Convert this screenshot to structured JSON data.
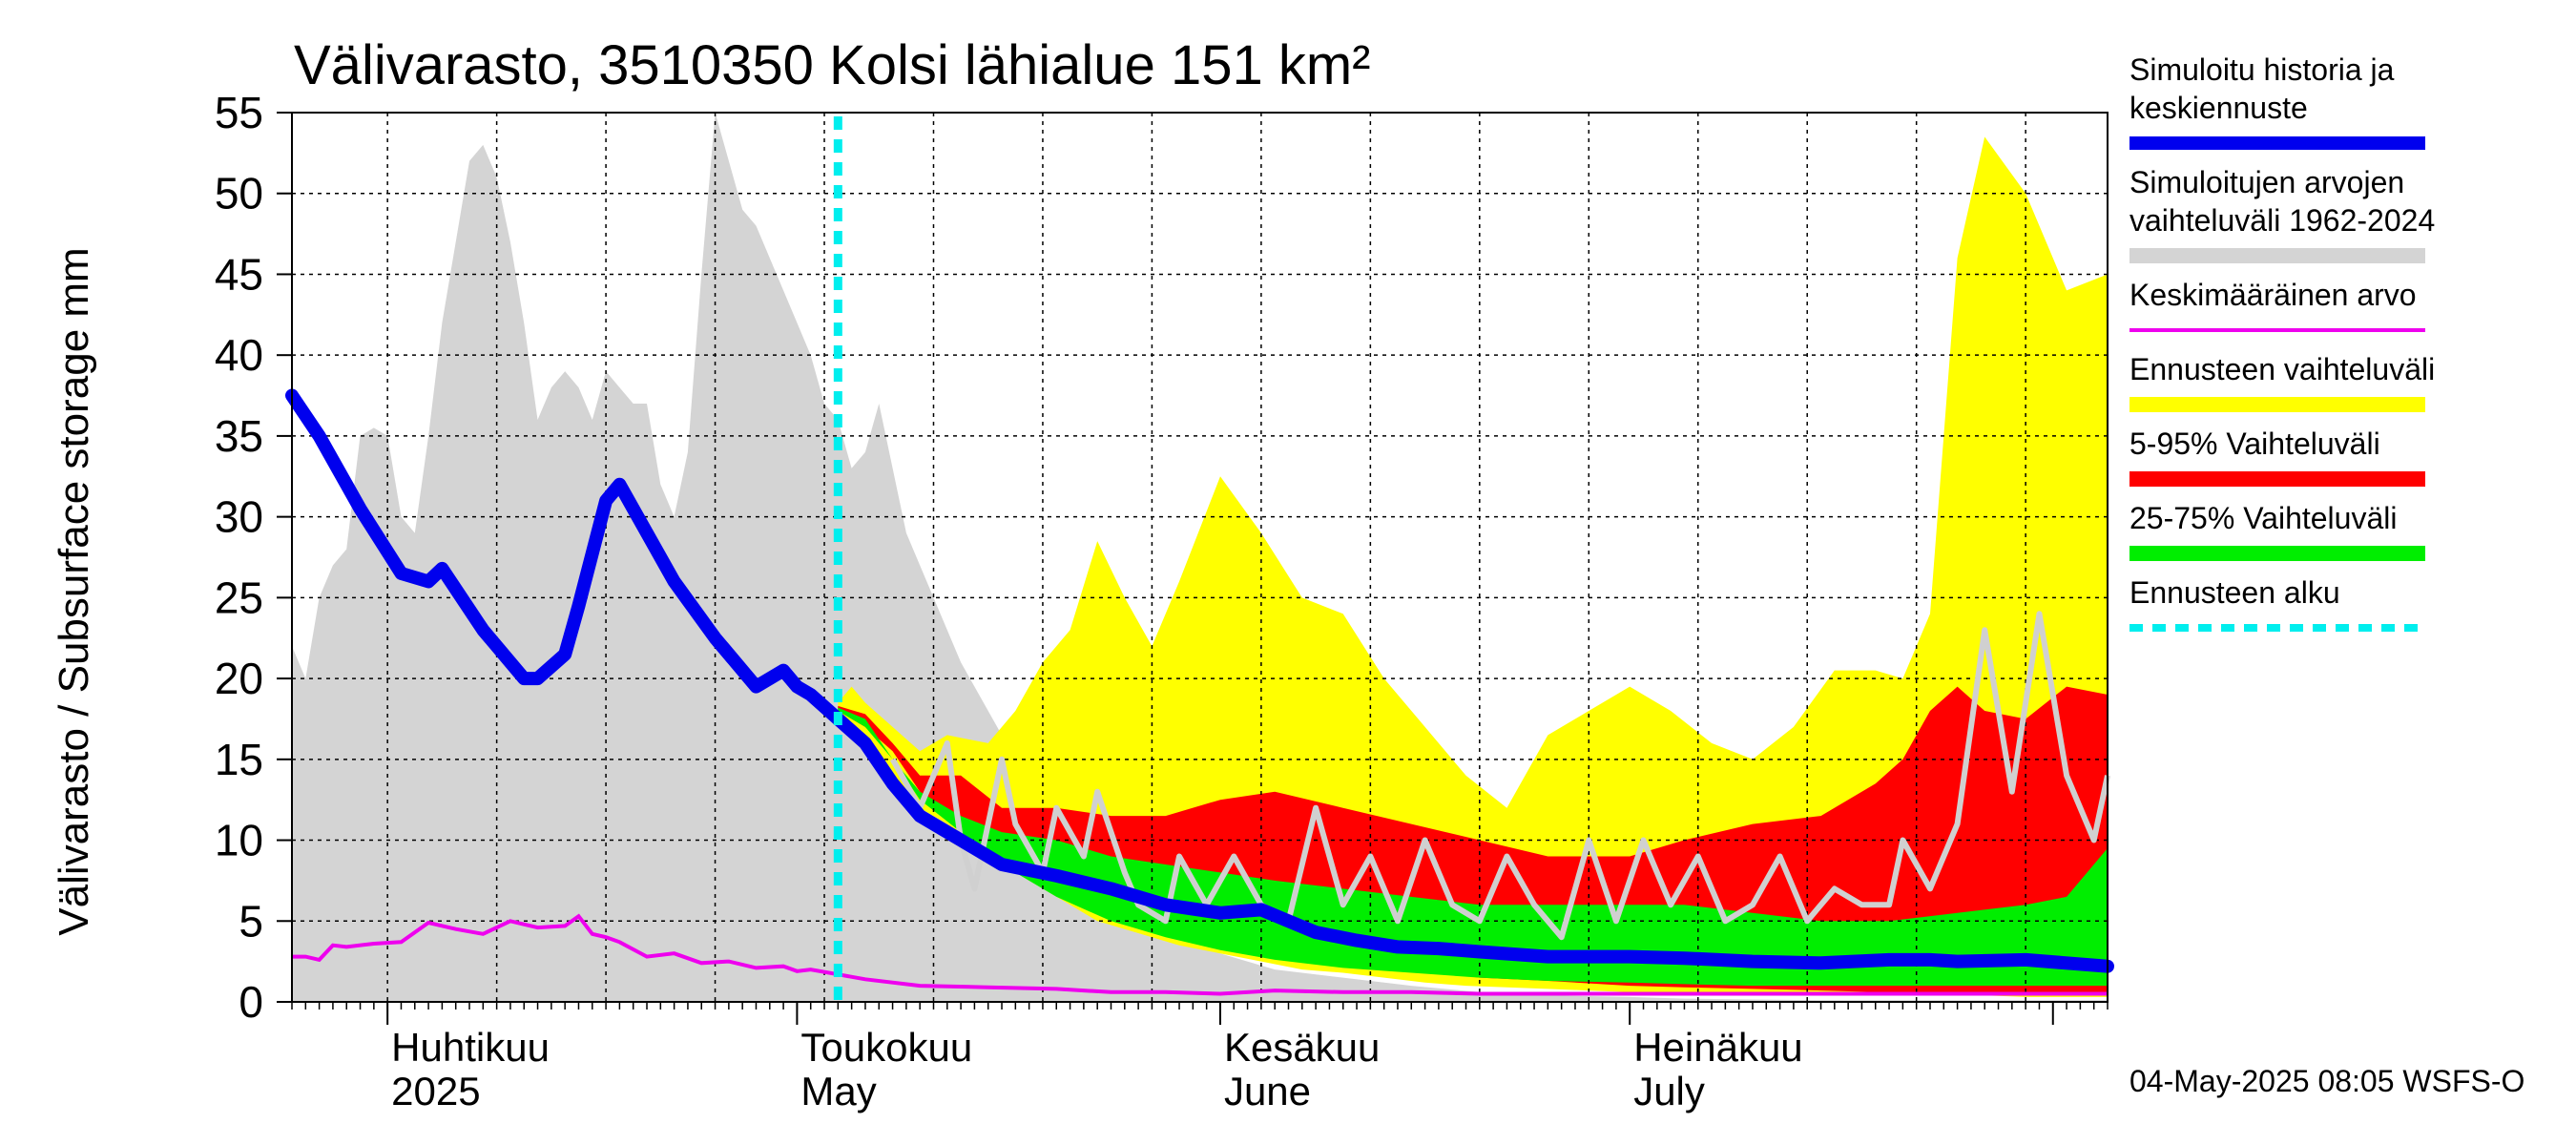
{
  "chart_data": {
    "type": "area",
    "title": "Välivarasto, 3510350 Kolsi lähialue 151 km²",
    "ylabel": "Välivarasto / Subsurface storage  mm",
    "ylim": [
      0,
      55
    ],
    "yticks": [
      0,
      5,
      10,
      15,
      20,
      25,
      30,
      35,
      40,
      45,
      50,
      55
    ],
    "xlim": [
      "2025-03-25",
      "2025-08-05"
    ],
    "month_labels": [
      {
        "fi": "Huhtikuu",
        "en": "2025",
        "date": "2025-04-01"
      },
      {
        "fi": "Toukokuu",
        "en": "May",
        "date": "2025-05-01"
      },
      {
        "fi": "Kesäkuu",
        "en": "June",
        "date": "2025-06-01"
      },
      {
        "fi": "Heinäkuu",
        "en": "July",
        "date": "2025-07-01"
      }
    ],
    "forecast_start": "2025-05-04",
    "timestamp": "04-May-2025 08:05 WSFS-O",
    "grid": true,
    "legend_position": "right",
    "legend": [
      {
        "label": "Simuloitu historia ja keskiennuste",
        "color": "#0000ee",
        "style": "thick-line"
      },
      {
        "label": "Simuloitujen arvojen vaihteluväli 1962-2024",
        "color": "#d4d4d4",
        "style": "band"
      },
      {
        "label": "Keskimääräinen arvo",
        "color": "#ee00ee",
        "style": "line"
      },
      {
        "label": "Ennusteen vaihteluväli",
        "color": "#ffff00",
        "style": "band"
      },
      {
        "label": "5-95% Vaihteluväli",
        "color": "#ff0000",
        "style": "band"
      },
      {
        "label": "25-75% Vaihteluväli",
        "color": "#00ee00",
        "style": "band"
      },
      {
        "label": "Ennusteen alku",
        "color": "#00eeee",
        "style": "dashed"
      }
    ],
    "series": {
      "historical_range": {
        "x": [
          "2025-03-25",
          "2025-03-26",
          "2025-03-27",
          "2025-03-28",
          "2025-03-29",
          "2025-03-30",
          "2025-03-31",
          "2025-04-01",
          "2025-04-02",
          "2025-04-03",
          "2025-04-04",
          "2025-04-05",
          "2025-04-06",
          "2025-04-07",
          "2025-04-08",
          "2025-04-09",
          "2025-04-10",
          "2025-04-11",
          "2025-04-12",
          "2025-04-13",
          "2025-04-14",
          "2025-04-15",
          "2025-04-16",
          "2025-04-17",
          "2025-04-18",
          "2025-04-19",
          "2025-04-20",
          "2025-04-21",
          "2025-04-22",
          "2025-04-23",
          "2025-04-24",
          "2025-04-25",
          "2025-04-26",
          "2025-04-27",
          "2025-04-28",
          "2025-04-29",
          "2025-04-30",
          "2025-05-01",
          "2025-05-02",
          "2025-05-03",
          "2025-05-04",
          "2025-05-05",
          "2025-05-06",
          "2025-05-07",
          "2025-05-08",
          "2025-05-09",
          "2025-05-10",
          "2025-05-11",
          "2025-05-12",
          "2025-05-13",
          "2025-05-15",
          "2025-05-17",
          "2025-05-20",
          "2025-05-24",
          "2025-05-28",
          "2025-06-01",
          "2025-06-05",
          "2025-06-10",
          "2025-06-15",
          "2025-06-20",
          "2025-06-25",
          "2025-07-01",
          "2025-07-05",
          "2025-07-10",
          "2025-07-15",
          "2025-07-20",
          "2025-07-25",
          "2025-07-30",
          "2025-08-05"
        ],
        "upper": [
          22,
          20,
          25,
          27,
          28,
          35,
          35.5,
          35,
          30,
          29,
          35,
          42,
          47,
          52,
          53,
          51,
          47,
          42,
          36,
          38,
          39,
          38,
          36,
          39,
          38,
          37,
          37,
          32,
          30,
          34,
          45,
          55,
          52,
          49,
          48,
          46,
          44,
          42,
          40,
          37,
          36,
          33,
          34,
          37,
          33,
          29,
          27,
          25,
          23,
          21,
          18,
          15,
          11,
          8,
          5,
          3,
          2,
          1.5,
          1,
          0.6,
          0.4,
          0.3,
          0.2,
          0.15,
          0.1,
          0.1,
          0.1,
          0.1,
          0.1
        ],
        "lower": [
          0,
          0,
          0,
          0,
          0,
          0,
          0,
          0,
          0,
          0,
          0,
          0,
          0,
          0,
          0,
          0,
          0,
          0,
          0,
          0,
          0,
          0,
          0,
          0,
          0,
          0,
          0,
          0,
          0,
          0,
          0,
          0,
          0,
          0,
          0,
          0,
          0,
          0,
          0,
          0,
          0,
          0,
          0,
          0,
          0,
          0,
          0,
          0,
          0,
          0,
          0,
          0,
          0,
          0,
          0,
          0,
          0,
          0,
          0,
          0,
          0,
          0,
          0,
          0,
          0,
          0,
          0,
          0,
          0
        ]
      },
      "mean": {
        "x": [
          "2025-03-25",
          "2025-03-26",
          "2025-03-27",
          "2025-03-28",
          "2025-03-29",
          "2025-03-31",
          "2025-04-02",
          "2025-04-04",
          "2025-04-06",
          "2025-04-08",
          "2025-04-10",
          "2025-04-12",
          "2025-04-14",
          "2025-04-15",
          "2025-04-16",
          "2025-04-17",
          "2025-04-18",
          "2025-04-20",
          "2025-04-22",
          "2025-04-24",
          "2025-04-26",
          "2025-04-28",
          "2025-04-30",
          "2025-05-01",
          "2025-05-02",
          "2025-05-04",
          "2025-05-06",
          "2025-05-10",
          "2025-05-15",
          "2025-05-20",
          "2025-05-24",
          "2025-05-28",
          "2025-06-01",
          "2025-06-05",
          "2025-06-10",
          "2025-06-15",
          "2025-06-20",
          "2025-06-25",
          "2025-07-01",
          "2025-07-05",
          "2025-07-10",
          "2025-07-15",
          "2025-07-20",
          "2025-07-25",
          "2025-07-30",
          "2025-08-05"
        ],
        "values": [
          2.8,
          2.8,
          2.6,
          3.5,
          3.4,
          3.6,
          3.7,
          4.9,
          4.5,
          4.2,
          5.0,
          4.6,
          4.7,
          5.3,
          4.2,
          4.0,
          3.7,
          2.8,
          3.0,
          2.4,
          2.5,
          2.1,
          2.2,
          1.9,
          2.0,
          1.7,
          1.4,
          1.0,
          0.9,
          0.8,
          0.6,
          0.6,
          0.5,
          0.7,
          0.6,
          0.6,
          0.5,
          0.5,
          0.5,
          0.5,
          0.5,
          0.5,
          0.5,
          0.5,
          0.5,
          0.5
        ]
      },
      "forecast_range": {
        "x": [
          "2025-05-04",
          "2025-05-05",
          "2025-05-06",
          "2025-05-08",
          "2025-05-10",
          "2025-05-12",
          "2025-05-15",
          "2025-05-17",
          "2025-05-19",
          "2025-05-21",
          "2025-05-23",
          "2025-05-25",
          "2025-05-27",
          "2025-05-29",
          "2025-06-01",
          "2025-06-04",
          "2025-06-07",
          "2025-06-10",
          "2025-06-13",
          "2025-06-16",
          "2025-06-19",
          "2025-06-22",
          "2025-06-25",
          "2025-06-28",
          "2025-07-01",
          "2025-07-04",
          "2025-07-07",
          "2025-07-10",
          "2025-07-13",
          "2025-07-16",
          "2025-07-19",
          "2025-07-21",
          "2025-07-23",
          "2025-07-25",
          "2025-07-27",
          "2025-07-30",
          "2025-08-02",
          "2025-08-05"
        ],
        "upper": [
          18.5,
          19.5,
          18.5,
          17,
          15.5,
          16.5,
          16,
          18,
          21,
          23,
          28.5,
          25,
          22,
          26,
          32.5,
          29,
          25,
          24,
          20,
          17,
          14,
          12,
          16.5,
          18,
          19.5,
          18,
          16,
          15,
          17,
          20.5,
          20.5,
          20,
          24,
          46,
          53.5,
          50,
          44,
          45
        ],
        "lower": [
          18,
          17,
          16,
          14,
          12,
          11,
          9,
          8,
          7,
          6,
          5,
          4.5,
          4,
          3.5,
          3,
          2.5,
          2,
          1.8,
          1.5,
          1.2,
          1,
          0.9,
          0.8,
          0.7,
          0.6,
          0.6,
          0.5,
          0.5,
          0.5,
          0.4,
          0.4,
          0.4,
          0.4,
          0.4,
          0.4,
          0.3,
          0.3,
          0.3
        ]
      },
      "p5_95": {
        "x": [
          "2025-05-04",
          "2025-05-06",
          "2025-05-08",
          "2025-05-10",
          "2025-05-13",
          "2025-05-16",
          "2025-05-20",
          "2025-05-24",
          "2025-05-28",
          "2025-06-01",
          "2025-06-05",
          "2025-06-10",
          "2025-06-15",
          "2025-06-20",
          "2025-06-25",
          "2025-07-01",
          "2025-07-05",
          "2025-07-10",
          "2025-07-15",
          "2025-07-19",
          "2025-07-21",
          "2025-07-23",
          "2025-07-25",
          "2025-07-27",
          "2025-07-30",
          "2025-08-02",
          "2025-08-05"
        ],
        "upper": [
          18.3,
          17.8,
          16,
          14,
          14,
          12,
          12,
          11.5,
          11.5,
          12.5,
          13,
          12,
          11,
          10,
          9,
          9,
          10,
          11,
          11.5,
          13.5,
          15,
          18,
          19.5,
          18,
          17.5,
          19.5,
          19
        ],
        "lower": [
          18,
          17,
          15.5,
          13,
          11,
          9,
          7,
          5.5,
          4.5,
          3.5,
          3,
          2.5,
          2,
          1.5,
          1.3,
          1,
          0.9,
          0.8,
          0.7,
          0.6,
          0.6,
          0.6,
          0.6,
          0.5,
          0.5,
          0.5,
          0.5
        ]
      },
      "p25_75": {
        "x": [
          "2025-05-04",
          "2025-05-06",
          "2025-05-08",
          "2025-05-10",
          "2025-05-13",
          "2025-05-16",
          "2025-05-20",
          "2025-05-24",
          "2025-05-28",
          "2025-06-01",
          "2025-06-05",
          "2025-06-10",
          "2025-06-15",
          "2025-06-20",
          "2025-06-25",
          "2025-07-01",
          "2025-07-05",
          "2025-07-10",
          "2025-07-15",
          "2025-07-20",
          "2025-07-25",
          "2025-07-30",
          "2025-08-02",
          "2025-08-05"
        ],
        "upper": [
          18.2,
          17.5,
          15,
          13,
          11.5,
          10.5,
          10,
          9,
          8.5,
          8,
          7.5,
          7,
          6.5,
          6,
          6,
          6,
          6,
          5.5,
          5,
          5,
          5.5,
          6,
          6.5,
          9.5
        ],
        "lower": [
          18,
          17,
          15,
          12.5,
          10.5,
          8.5,
          6.5,
          5,
          4,
          3.2,
          2.6,
          2.1,
          1.8,
          1.5,
          1.3,
          1.2,
          1.1,
          1.0,
          1.0,
          1.0,
          1.0,
          1.0,
          1.0,
          1.0
        ]
      },
      "sample_trace": {
        "x": [
          "2025-05-08",
          "2025-05-10",
          "2025-05-12",
          "2025-05-13",
          "2025-05-14",
          "2025-05-16",
          "2025-05-17",
          "2025-05-19",
          "2025-05-20",
          "2025-05-22",
          "2025-05-23",
          "2025-05-25",
          "2025-05-26",
          "2025-05-28",
          "2025-05-29",
          "2025-05-31",
          "2025-06-02",
          "2025-06-04",
          "2025-06-06",
          "2025-06-08",
          "2025-06-10",
          "2025-06-12",
          "2025-06-14",
          "2025-06-16",
          "2025-06-18",
          "2025-06-20",
          "2025-06-22",
          "2025-06-24",
          "2025-06-26",
          "2025-06-28",
          "2025-06-30",
          "2025-07-02",
          "2025-07-04",
          "2025-07-06",
          "2025-07-08",
          "2025-07-10",
          "2025-07-12",
          "2025-07-14",
          "2025-07-16",
          "2025-07-18",
          "2025-07-20",
          "2025-07-21",
          "2025-07-23",
          "2025-07-25",
          "2025-07-27",
          "2025-07-29",
          "2025-07-31",
          "2025-08-02",
          "2025-08-04",
          "2025-08-05"
        ],
        "values": [
          15,
          12,
          16,
          10,
          7,
          15,
          11,
          8,
          12,
          9,
          13,
          8,
          6,
          5,
          9,
          6,
          9,
          6,
          5,
          12,
          6,
          9,
          5,
          10,
          6,
          5,
          9,
          6,
          4,
          10,
          5,
          10,
          6,
          9,
          5,
          6,
          9,
          5,
          7,
          6,
          6,
          10,
          7,
          11,
          23,
          13,
          24,
          14,
          10,
          14
        ]
      },
      "median_forecast": {
        "x": [
          "2025-03-25",
          "2025-03-27",
          "2025-03-30",
          "2025-04-02",
          "2025-04-04",
          "2025-04-05",
          "2025-04-08",
          "2025-04-11",
          "2025-04-12",
          "2025-04-14",
          "2025-04-15",
          "2025-04-17",
          "2025-04-18",
          "2025-04-20",
          "2025-04-22",
          "2025-04-25",
          "2025-04-28",
          "2025-04-30",
          "2025-05-01",
          "2025-05-02",
          "2025-05-04",
          "2025-05-06",
          "2025-05-08",
          "2025-05-10",
          "2025-05-13",
          "2025-05-16",
          "2025-05-20",
          "2025-05-24",
          "2025-05-28",
          "2025-06-01",
          "2025-06-04",
          "2025-06-06",
          "2025-06-08",
          "2025-06-11",
          "2025-06-14",
          "2025-06-17",
          "2025-06-20",
          "2025-06-25",
          "2025-07-01",
          "2025-07-05",
          "2025-07-10",
          "2025-07-15",
          "2025-07-20",
          "2025-07-23",
          "2025-07-25",
          "2025-07-30",
          "2025-08-05"
        ],
        "values": [
          37.5,
          35,
          30.5,
          26.5,
          26,
          26.8,
          23,
          20,
          20,
          21.5,
          24.5,
          31,
          32,
          29,
          26,
          22.5,
          19.5,
          20.5,
          19.5,
          19,
          17.5,
          16,
          13.5,
          11.5,
          10,
          8.5,
          7.8,
          7,
          6,
          5.5,
          5.7,
          5,
          4.3,
          3.8,
          3.4,
          3.3,
          3.1,
          2.8,
          2.8,
          2.7,
          2.5,
          2.4,
          2.6,
          2.6,
          2.5,
          2.6,
          2.2
        ]
      }
    }
  }
}
